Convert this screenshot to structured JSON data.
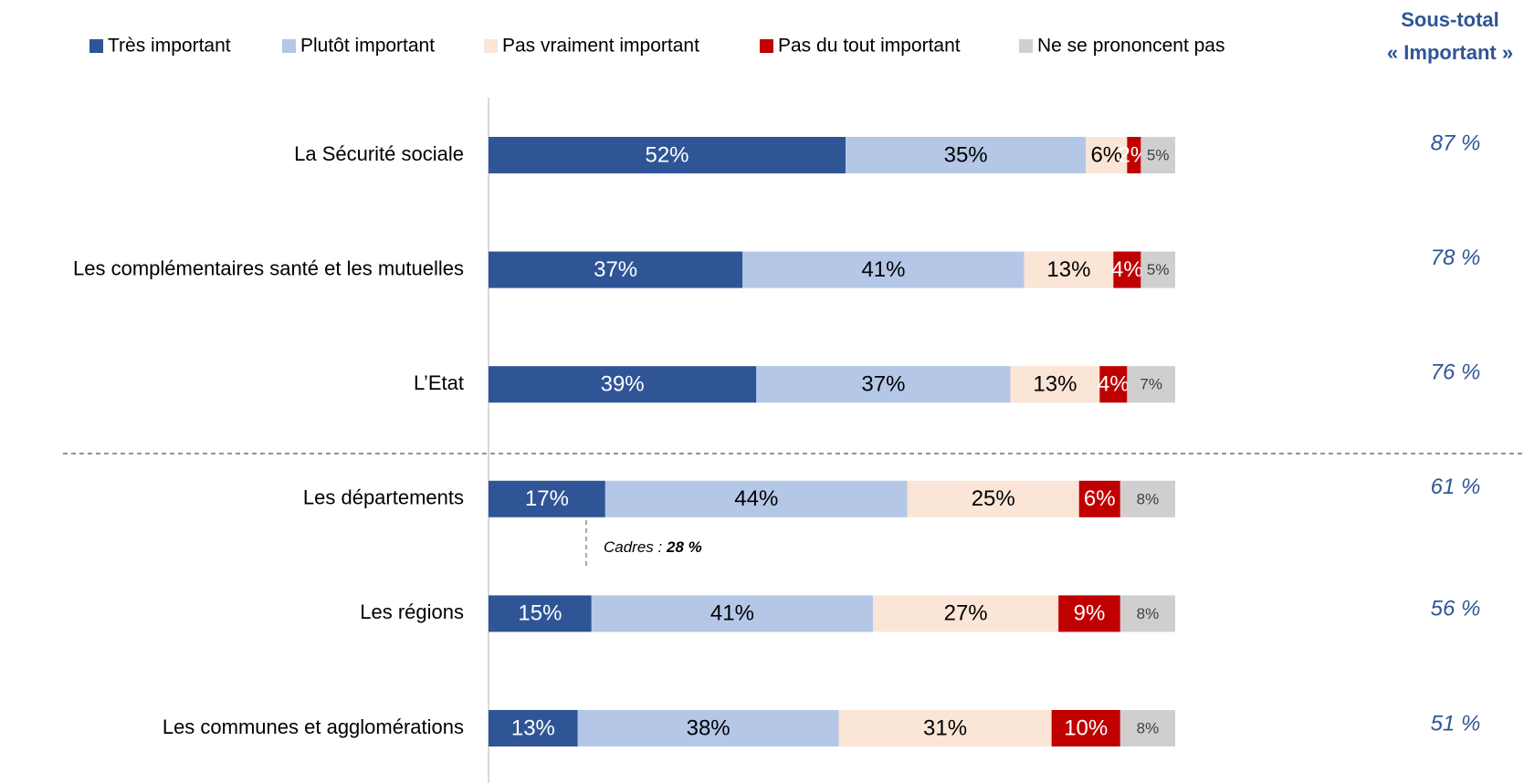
{
  "chart_data": {
    "type": "stacked_bar_horizontal",
    "categories": [
      "La Sécurité sociale",
      "Les complémentaires santé et les mutuelles",
      "L’Etat",
      "Les départements",
      "Les régions",
      "Les communes et agglomérations"
    ],
    "xlim": [
      0,
      100
    ],
    "series": [
      {
        "name": "Très important",
        "color": "#2f5597",
        "label_color": "#ffffff",
        "values": [
          52,
          37,
          39,
          17,
          15,
          13
        ],
        "value_labels": [
          "52%",
          "37%",
          "39%",
          "17%",
          "15%",
          "13%"
        ]
      },
      {
        "name": "Plutôt important",
        "color": "#b4c7e7",
        "label_color": "#000000",
        "values": [
          35,
          41,
          37,
          44,
          41,
          38
        ],
        "value_labels": [
          "35%",
          "41%",
          "37%",
          "44%",
          "41%",
          "38%"
        ]
      },
      {
        "name": "Pas vraiment important",
        "color": "#fbe5d6",
        "label_color": "#000000",
        "values": [
          6,
          13,
          13,
          25,
          27,
          31
        ],
        "value_labels": [
          "6%",
          "13%",
          "13%",
          "25%",
          "27%",
          "31%"
        ]
      },
      {
        "name": "Pas du tout important",
        "color": "#c00000",
        "label_color": "#ffffff",
        "values": [
          2,
          4,
          4,
          6,
          9,
          10
        ],
        "value_labels": [
          "2%",
          "4%",
          "4%",
          "6%",
          "9%",
          "10%"
        ]
      },
      {
        "name": "Ne se prononcent pas",
        "color": "#d0cece",
        "label_color": "#404040",
        "values": [
          5,
          5,
          7,
          8,
          8,
          8
        ],
        "value_labels": [
          "5%",
          "5%",
          "7%",
          "8%",
          "8%",
          "8%"
        ]
      }
    ],
    "subtotal": {
      "title": [
        "Sous-total",
        "« Important »"
      ],
      "values": [
        87,
        78,
        76,
        61,
        56,
        51
      ],
      "value_labels": [
        "87 %",
        "78 %",
        "76 %",
        "61 %",
        "56 %",
        "51 %"
      ]
    },
    "annotation": {
      "label": "Cadres :",
      "value": 28,
      "value_label": "28 %"
    }
  }
}
